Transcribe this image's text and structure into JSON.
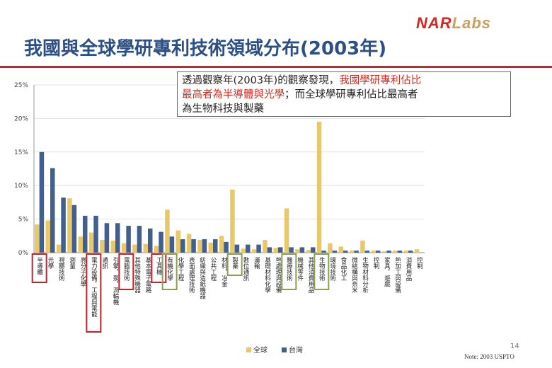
{
  "logo": {
    "part1": "NAR",
    "part2": "Labs"
  },
  "title": "我國與全球學研專利技術領域分布(2003年)",
  "callout": {
    "line1_a": "透過觀察年(2003年)的觀察發現，",
    "line1_b": "我國學研專利佔比",
    "line2_a": "最高者為半導體與光學",
    "line2_b": "；而全球學研專利佔比最高者",
    "line3": "為生物科技與製藥"
  },
  "footnote": "Note: 2003 USPTO",
  "page_number": "14",
  "chart_data": {
    "type": "bar",
    "categories": [
      "半導體",
      "光學",
      "視聽技術",
      "測量",
      "高分子化學",
      "電力設備，工程與電能",
      "通訊",
      "引擎，泵，渦輪機",
      "電腦技術",
      "其他特殊機器",
      "基本電子電路",
      "工具機",
      "有機化學",
      "化學工程",
      "表面處理技術",
      "紡織與造紙機器",
      "公共工程",
      "材料，冶金",
      "製藥",
      "數位通訊",
      "運輸",
      "基礎材料化學",
      "熱處理與設備",
      "醫療技術",
      "機械零件",
      "其他消費用品",
      "生物技術",
      "環境技術",
      "食品化工",
      "微結構與奈米",
      "生物材料分析",
      "控制",
      "家具，遊戲",
      "熱加工與設備",
      "消費用品",
      "控制"
    ],
    "series": [
      {
        "name": "全球",
        "color": "#e8c86a",
        "values": [
          4.2,
          4.8,
          1.2,
          8.1,
          2.4,
          3.0,
          1.9,
          1.8,
          1.4,
          1.2,
          1.3,
          1.0,
          6.4,
          3.3,
          2.8,
          1.9,
          1.5,
          2.5,
          9.4,
          0.6,
          0.5,
          1.9,
          0.7,
          6.6,
          0.5,
          0.4,
          19.5,
          1.4,
          0.9,
          0.3,
          1.8,
          0.3,
          0.2,
          0.3,
          0.3,
          0.5
        ]
      },
      {
        "name": "台灣",
        "color": "#41608e",
        "values": [
          15.0,
          12.6,
          8.2,
          7.1,
          5.5,
          5.5,
          4.4,
          4.4,
          4.0,
          4.0,
          3.6,
          3.1,
          2.4,
          2.0,
          2.0,
          2.0,
          2.0,
          1.6,
          1.2,
          1.2,
          1.2,
          0.8,
          0.8,
          0.8,
          0.8,
          0.8,
          0.3,
          0.3,
          0.3,
          0.3,
          0.3,
          0.3,
          0.3,
          0.3,
          0.3,
          0.0
        ]
      }
    ],
    "ylim": [
      0,
      25
    ],
    "yticks": [
      "0%",
      "5%",
      "10%",
      "15%",
      "20%",
      "25%"
    ],
    "grid": true,
    "legend": "bottom",
    "highlight": {
      "red_boxes": [
        0,
        5,
        8,
        11
      ],
      "green_boxes": [
        12,
        18,
        23,
        26
      ],
      "red_color": "#c8202a",
      "green_color": "#8aa050"
    }
  }
}
